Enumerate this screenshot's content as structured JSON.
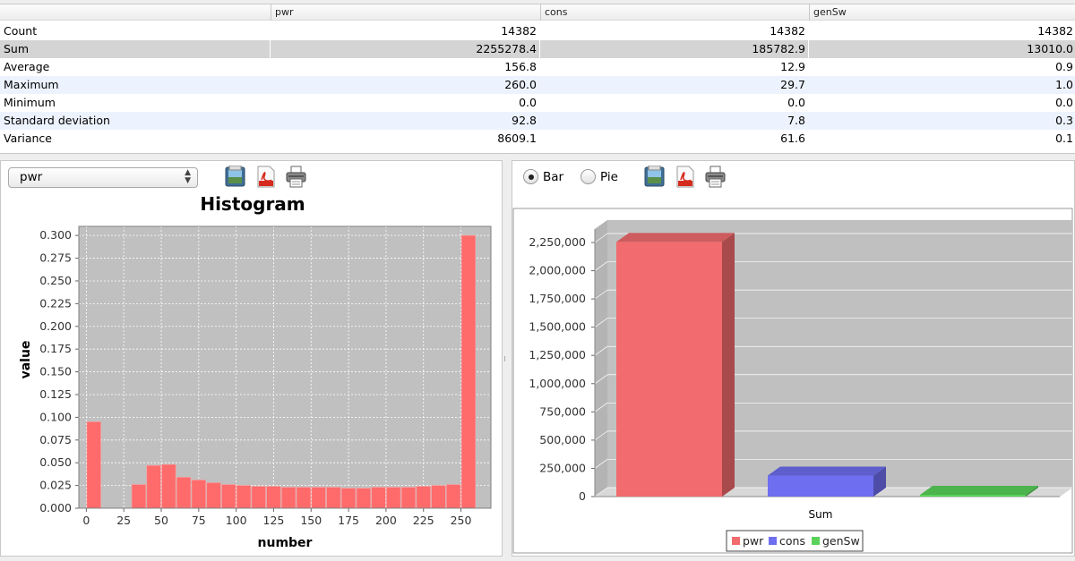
{
  "stats_table": {
    "columns": [
      "",
      "pwr",
      "cons",
      "genSw"
    ],
    "rows": [
      {
        "label": "Count",
        "values": [
          "14382",
          "14382",
          "14382"
        ]
      },
      {
        "label": "Sum",
        "values": [
          "2255278.4",
          "185782.9",
          "13010.0"
        ]
      },
      {
        "label": "Average",
        "values": [
          "156.8",
          "12.9",
          "0.9"
        ]
      },
      {
        "label": "Maximum",
        "values": [
          "260.0",
          "29.7",
          "1.0"
        ]
      },
      {
        "label": "Minimum",
        "values": [
          "0.0",
          "0.0",
          "0.0"
        ]
      },
      {
        "label": "Standard deviation",
        "values": [
          "92.8",
          "7.8",
          "0.3"
        ]
      },
      {
        "label": "Variance",
        "values": [
          "8609.1",
          "61.6",
          "0.1"
        ]
      }
    ],
    "selected_row": "Sum"
  },
  "left_toolbar": {
    "selected_variable": "pwr",
    "icons": [
      "image-export-icon",
      "pdf-export-icon",
      "print-icon"
    ]
  },
  "right_toolbar": {
    "bar_label": "Bar",
    "pie_label": "Pie",
    "selected": "Bar",
    "icons": [
      "image-export-icon",
      "pdf-export-icon",
      "print-icon"
    ]
  },
  "colors": {
    "histogram_bar": "#ff6b6b",
    "plot_background": "#c0c0c0",
    "pwr": "#f26b6e",
    "cons": "#6e6ef0",
    "genSw": "#5ad25a"
  },
  "chart_data": [
    {
      "type": "bar",
      "title": "Histogram",
      "xlabel": "number",
      "ylabel": "value",
      "xlim": [
        -5,
        270
      ],
      "ylim": [
        0,
        0.31
      ],
      "xticks": [
        "0",
        "25",
        "50",
        "75",
        "100",
        "125",
        "150",
        "175",
        "200",
        "225",
        "250"
      ],
      "yticks": [
        "0.000",
        "0.025",
        "0.050",
        "0.075",
        "0.100",
        "0.125",
        "0.150",
        "0.175",
        "0.200",
        "0.225",
        "0.250",
        "0.275",
        "0.300"
      ],
      "bin_width": 10,
      "bins": [
        {
          "x": 0,
          "value": 0.095
        },
        {
          "x": 30,
          "value": 0.026
        },
        {
          "x": 40,
          "value": 0.047
        },
        {
          "x": 50,
          "value": 0.048
        },
        {
          "x": 60,
          "value": 0.034
        },
        {
          "x": 70,
          "value": 0.031
        },
        {
          "x": 80,
          "value": 0.028
        },
        {
          "x": 90,
          "value": 0.026
        },
        {
          "x": 100,
          "value": 0.025
        },
        {
          "x": 110,
          "value": 0.024
        },
        {
          "x": 120,
          "value": 0.024
        },
        {
          "x": 130,
          "value": 0.023
        },
        {
          "x": 140,
          "value": 0.023
        },
        {
          "x": 150,
          "value": 0.023
        },
        {
          "x": 160,
          "value": 0.023
        },
        {
          "x": 170,
          "value": 0.022
        },
        {
          "x": 180,
          "value": 0.022
        },
        {
          "x": 190,
          "value": 0.023
        },
        {
          "x": 200,
          "value": 0.023
        },
        {
          "x": 210,
          "value": 0.023
        },
        {
          "x": 220,
          "value": 0.024
        },
        {
          "x": 230,
          "value": 0.025
        },
        {
          "x": 240,
          "value": 0.026
        },
        {
          "x": 250,
          "value": 0.3
        }
      ],
      "grid": true
    },
    {
      "type": "bar",
      "categories": [
        "Sum"
      ],
      "series": [
        {
          "name": "pwr",
          "values": [
            2255278.4
          ]
        },
        {
          "name": "cons",
          "values": [
            185782.9
          ]
        },
        {
          "name": "genSw",
          "values": [
            13010.0
          ]
        }
      ],
      "ylim": [
        0,
        2350000
      ],
      "yticks": [
        "0",
        "250,000",
        "500,000",
        "750,000",
        "1,000,000",
        "1,250,000",
        "1,500,000",
        "1,750,000",
        "2,000,000",
        "2,250,000"
      ],
      "legend_position": "bottom-center",
      "grid": true,
      "style": "3d"
    }
  ]
}
